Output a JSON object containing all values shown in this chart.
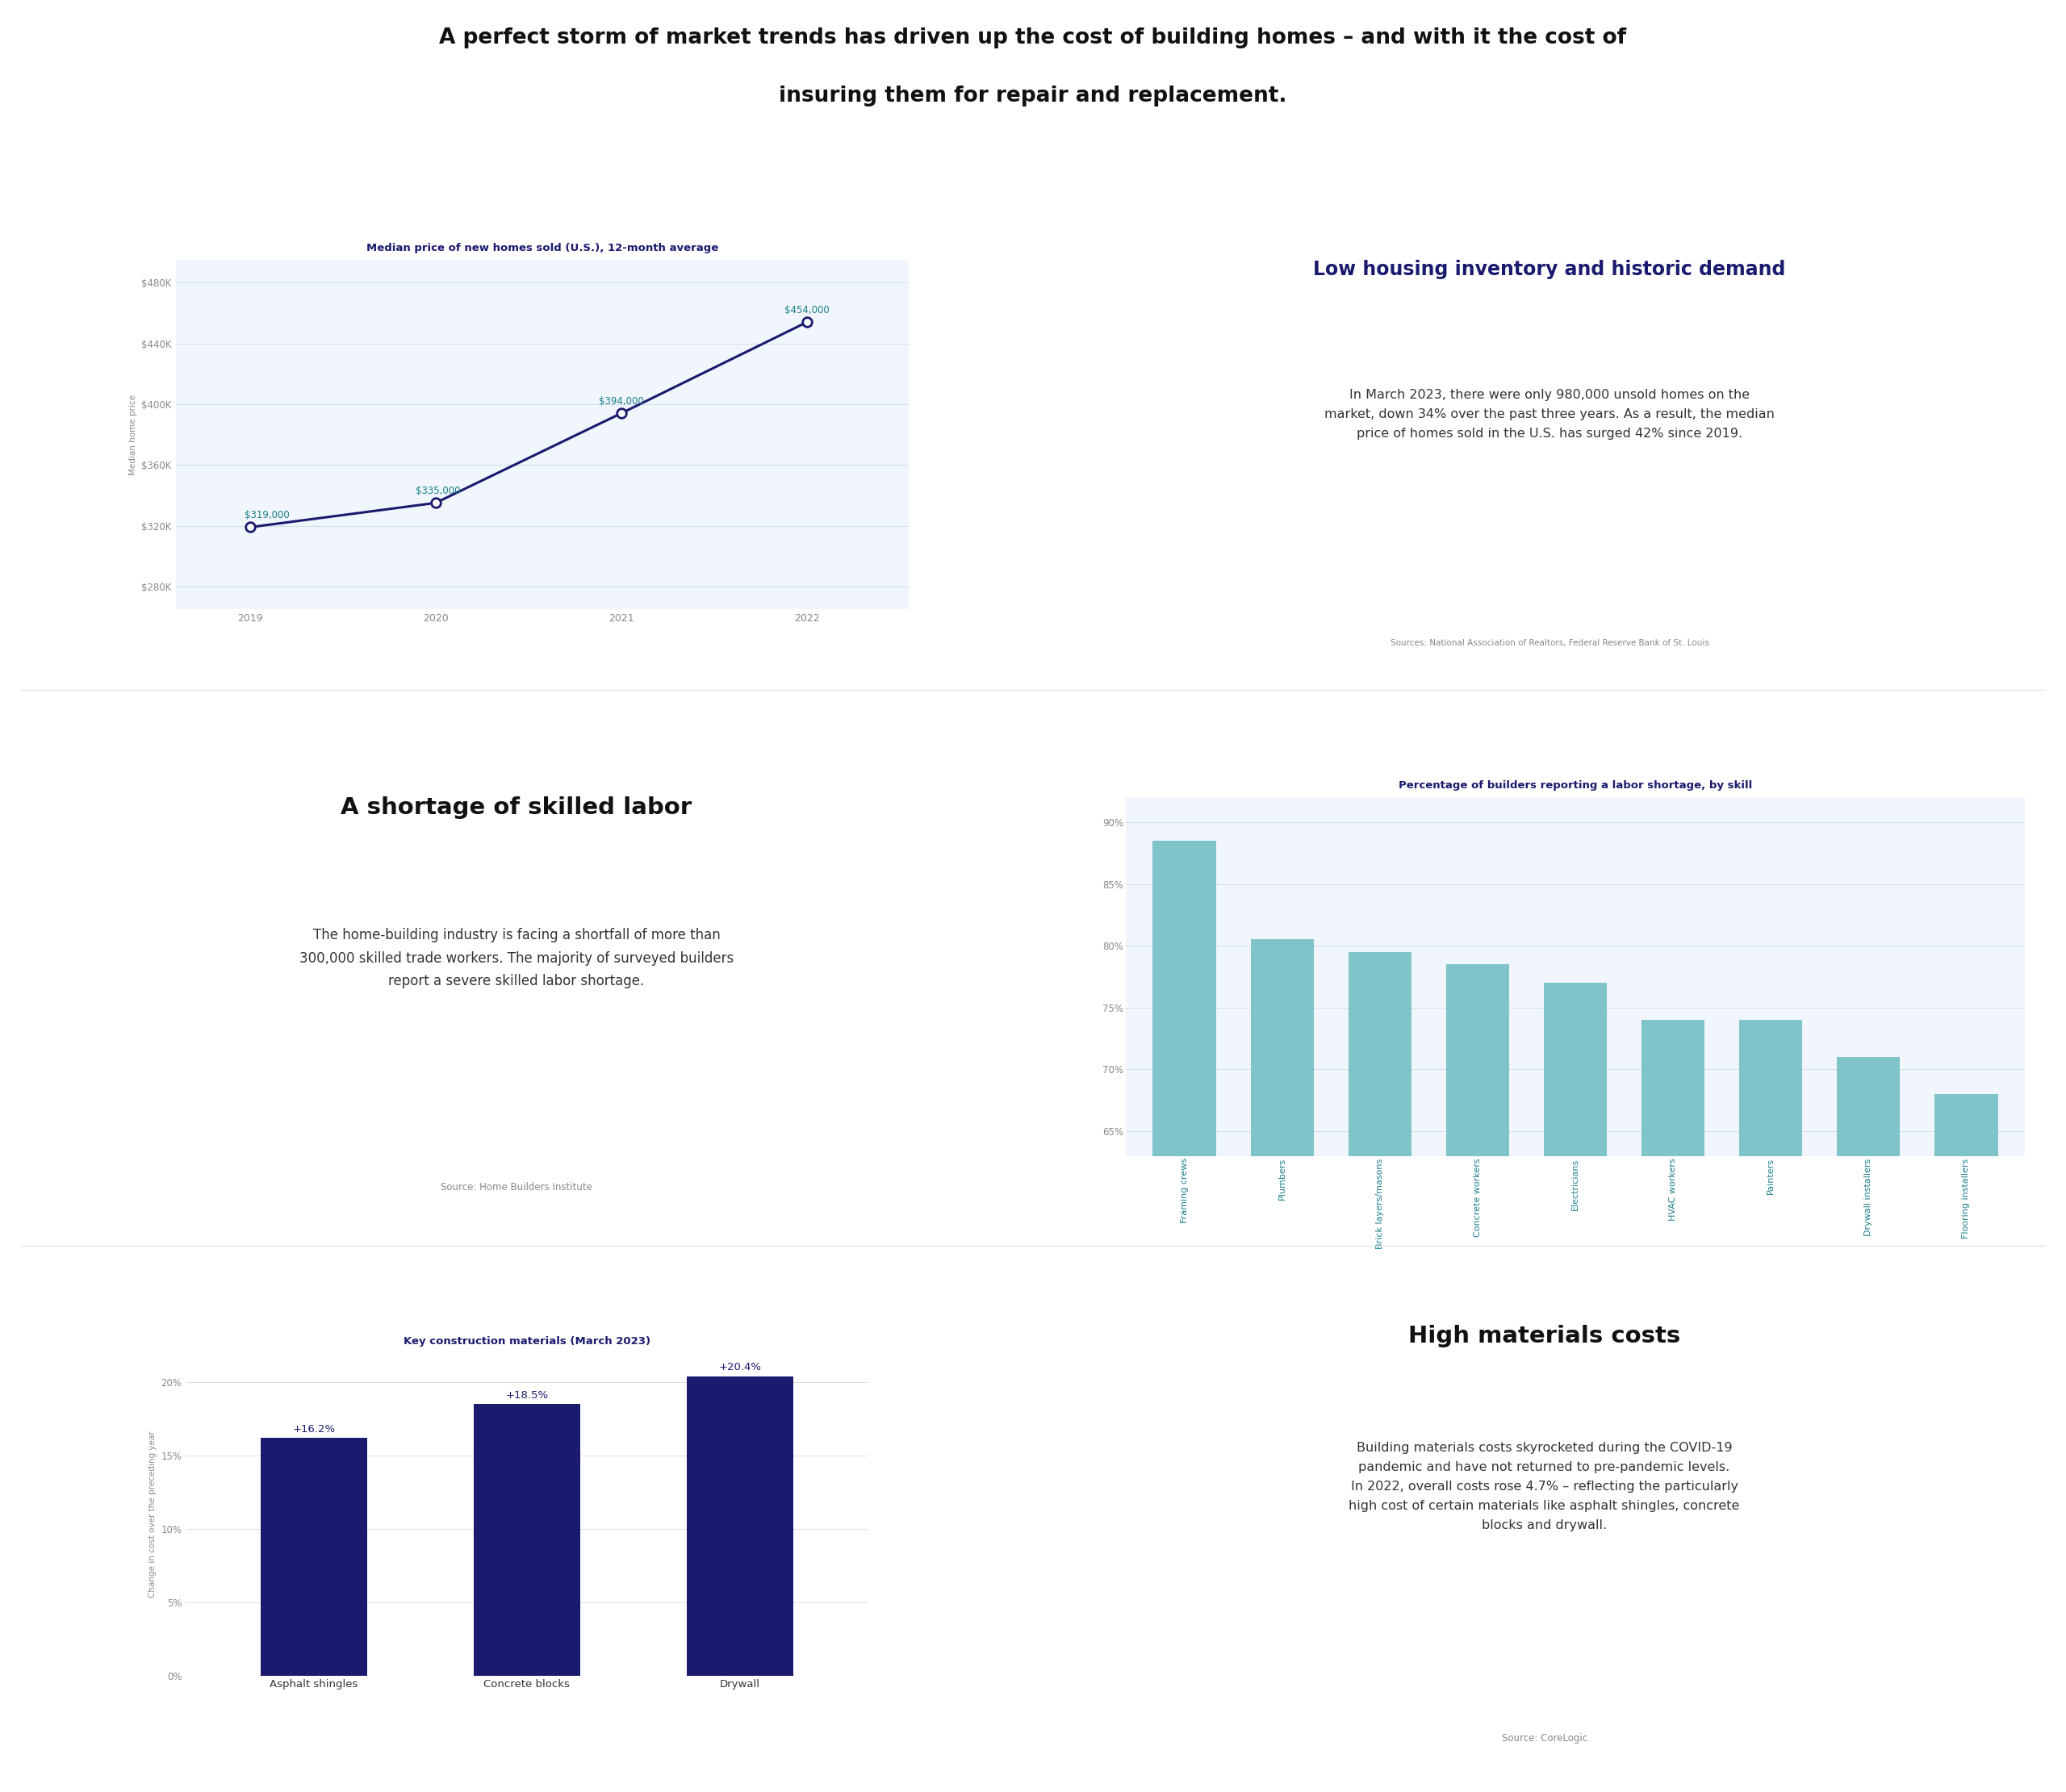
{
  "title_line1": "A perfect storm of market trends has driven up the cost of building homes – and with it the cost of",
  "title_line2": "insuring them for repair and replacement.",
  "bg_color": "#ffffff",
  "panel_bg": "#f0f6fb",
  "chart1_title": "Median price of new homes sold (U.S.), 12-month average",
  "chart1_years": [
    2019,
    2020,
    2021,
    2022
  ],
  "chart1_values": [
    319000,
    335000,
    394000,
    454000
  ],
  "chart1_labels": [
    "$319,000",
    "$335,000",
    "$394,000",
    "$454,000"
  ],
  "chart1_yticks": [
    280000,
    320000,
    360000,
    400000,
    440000,
    480000
  ],
  "chart1_ytick_labels": [
    "$280K",
    "$320K",
    "$360K",
    "$400K",
    "$440K",
    "$480K"
  ],
  "chart1_ylabel": "Median home price",
  "chart1_line_color": "#1a1a6e",
  "chart1_annotation_color": "#1a7f8a",
  "text1_title": "Low housing inventory and historic demand",
  "text1_body": "In March 2023, there were only 980,000 unsold homes on the\nmarket, down 34% over the past three years. As a result, the median\nprice of homes sold in the U.S. has surged 42% since 2019.",
  "text1_source": "Sources: National Association of Realtors, Federal Reserve Bank of St. Louis",
  "chart2_title": "A shortage of skilled labor",
  "chart2_body": "The home-building industry is facing a shortfall of more than\n300,000 skilled trade workers. The majority of surveyed builders\nreport a severe skilled labor shortage.",
  "chart2_source": "Source: Home Builders Institute",
  "chart3_title": "Percentage of builders reporting a labor shortage, by skill",
  "chart3_categories": [
    "Framing crews",
    "Plumbers",
    "Brick layers/masons",
    "Concrete workers",
    "Electricians",
    "HVAC workers",
    "Painters",
    "Drywall installers",
    "Flooring installers"
  ],
  "chart3_values": [
    88.5,
    80.5,
    79.5,
    78.5,
    77.0,
    74.0,
    74.0,
    71.0,
    68.0
  ],
  "chart3_color": "#7fc4c8",
  "chart3_yticks": [
    65,
    70,
    75,
    80,
    85,
    90
  ],
  "chart3_ylim": [
    63,
    92
  ],
  "chart3_xtick_color": "#1a7f8a",
  "chart4_title": "Key construction materials (March 2023)",
  "chart4_categories": [
    "Asphalt shingles",
    "Concrete blocks",
    "Drywall"
  ],
  "chart4_values": [
    16.2,
    18.5,
    20.4
  ],
  "chart4_labels": [
    "+16.2%",
    "+18.5%",
    "+20.4%"
  ],
  "chart4_color": "#1a1a6e",
  "chart4_ylabel": "Change in cost over the preceding year",
  "chart4_yticks": [
    0,
    5,
    10,
    15,
    20
  ],
  "chart4_ytick_labels": [
    "0%",
    "5%",
    "10%",
    "15%",
    "20%"
  ],
  "chart4_ylim": [
    0,
    22
  ],
  "text4_title": "High materials costs",
  "text4_body": "Building materials costs skyrocketed during the COVID-19\npandemic and have not returned to pre-pandemic levels.\nIn 2022, overall costs rose 4.7% – reflecting the particularly\nhigh cost of certain materials like asphalt shingles, concrete\nblocks and drywall.",
  "text4_source": "Source: CoreLogic",
  "dark_navy": "#1a1a6e",
  "teal_text": "#1a7f8a",
  "light_blue_bg": "#f0f6fb",
  "grid_color": "#d0dde8",
  "tick_color": "#888888",
  "body_text_color": "#333333"
}
